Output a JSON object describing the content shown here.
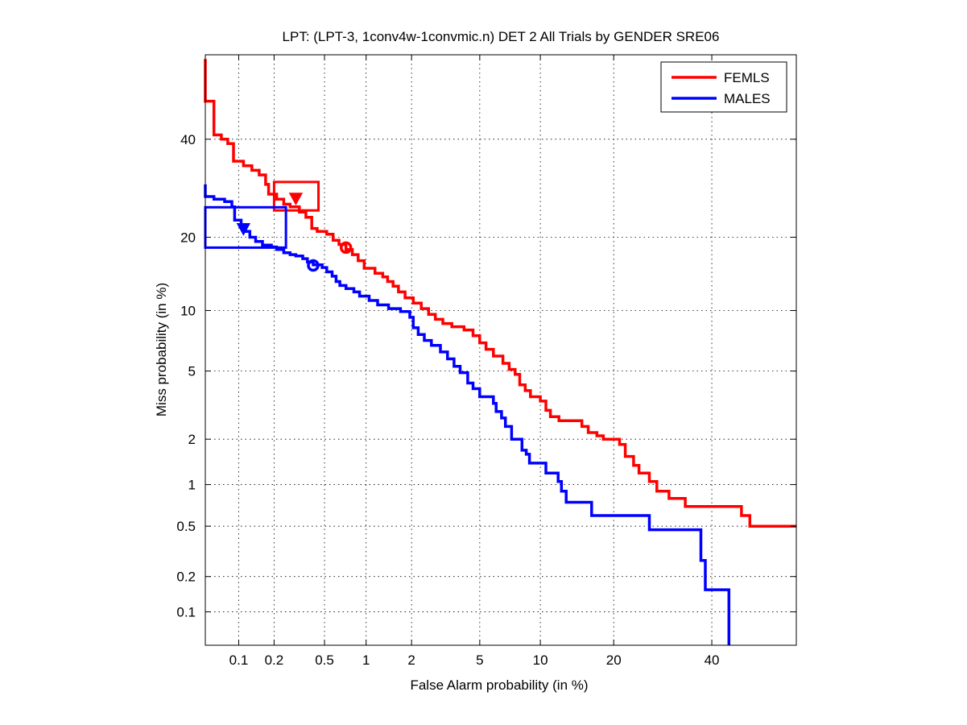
{
  "chart_data": {
    "type": "line",
    "title": "LPT: (LPT-3, 1conv4w-1convmic.n) DET 2 All Trials by GENDER SRE06",
    "xlabel": "False Alarm probability (in %)",
    "ylabel": "Miss probability (in %)",
    "scale": "normal-deviate (probit) axes",
    "xlim": [
      0.05,
      60
    ],
    "ylim": [
      0.05,
      60
    ],
    "x_ticks": [
      0.1,
      0.2,
      0.5,
      1,
      2,
      5,
      10,
      20,
      40
    ],
    "x_tick_labels": [
      "0.1",
      "0.2",
      "0.5",
      "1",
      "2",
      "5",
      "10",
      "20",
      "40"
    ],
    "y_ticks": [
      0.1,
      0.2,
      0.5,
      1,
      2,
      5,
      10,
      20,
      40
    ],
    "y_tick_labels": [
      "0.1",
      "0.2",
      "0.5",
      "1",
      "2",
      "5",
      "10",
      "20",
      "40"
    ],
    "grid": true,
    "legend_position": "top-right",
    "series": [
      {
        "name": "FEMLS",
        "color": "#ff0000",
        "points": [
          [
            0.05,
            59
          ],
          [
            0.05,
            49
          ],
          [
            0.06,
            49
          ],
          [
            0.06,
            41
          ],
          [
            0.07,
            41
          ],
          [
            0.07,
            40
          ],
          [
            0.08,
            40
          ],
          [
            0.08,
            39
          ],
          [
            0.09,
            39
          ],
          [
            0.09,
            35
          ],
          [
            0.11,
            35
          ],
          [
            0.11,
            34
          ],
          [
            0.13,
            34
          ],
          [
            0.13,
            33
          ],
          [
            0.15,
            33
          ],
          [
            0.15,
            32
          ],
          [
            0.17,
            32
          ],
          [
            0.17,
            30
          ],
          [
            0.18,
            30
          ],
          [
            0.18,
            28
          ],
          [
            0.21,
            28
          ],
          [
            0.21,
            27
          ],
          [
            0.24,
            27
          ],
          [
            0.24,
            26
          ],
          [
            0.27,
            26
          ],
          [
            0.27,
            25.5
          ],
          [
            0.32,
            25.5
          ],
          [
            0.32,
            24.5
          ],
          [
            0.36,
            24.5
          ],
          [
            0.36,
            23.5
          ],
          [
            0.4,
            23.5
          ],
          [
            0.4,
            21.5
          ],
          [
            0.44,
            21.5
          ],
          [
            0.44,
            21
          ],
          [
            0.52,
            21
          ],
          [
            0.52,
            20.5
          ],
          [
            0.58,
            20.5
          ],
          [
            0.58,
            19.5
          ],
          [
            0.64,
            19.5
          ],
          [
            0.64,
            18.8
          ],
          [
            0.72,
            18.8
          ],
          [
            0.72,
            18
          ],
          [
            0.8,
            18
          ],
          [
            0.8,
            17.2
          ],
          [
            0.88,
            17.2
          ],
          [
            0.88,
            16.3
          ],
          [
            0.97,
            16.3
          ],
          [
            0.97,
            15.2
          ],
          [
            1.15,
            15.2
          ],
          [
            1.15,
            14.5
          ],
          [
            1.3,
            14.5
          ],
          [
            1.3,
            14
          ],
          [
            1.4,
            14
          ],
          [
            1.4,
            13.4
          ],
          [
            1.52,
            13.4
          ],
          [
            1.52,
            12.8
          ],
          [
            1.65,
            12.8
          ],
          [
            1.65,
            12.1
          ],
          [
            1.82,
            12.1
          ],
          [
            1.82,
            11.4
          ],
          [
            2.05,
            11.4
          ],
          [
            2.05,
            10.8
          ],
          [
            2.3,
            10.8
          ],
          [
            2.3,
            10.2
          ],
          [
            2.55,
            10.2
          ],
          [
            2.55,
            9.6
          ],
          [
            2.8,
            9.6
          ],
          [
            2.8,
            9.1
          ],
          [
            3.1,
            9.1
          ],
          [
            3.1,
            8.7
          ],
          [
            3.5,
            8.7
          ],
          [
            3.5,
            8.4
          ],
          [
            4.1,
            8.4
          ],
          [
            4.1,
            8.1
          ],
          [
            4.6,
            8.1
          ],
          [
            4.6,
            7.6
          ],
          [
            5.0,
            7.6
          ],
          [
            5.0,
            7.0
          ],
          [
            5.4,
            7.0
          ],
          [
            5.4,
            6.5
          ],
          [
            5.9,
            6.5
          ],
          [
            5.9,
            6.0
          ],
          [
            6.6,
            6.0
          ],
          [
            6.6,
            5.5
          ],
          [
            7.1,
            5.5
          ],
          [
            7.1,
            5.1
          ],
          [
            7.6,
            5.1
          ],
          [
            7.6,
            4.8
          ],
          [
            8.0,
            4.8
          ],
          [
            8.0,
            4.2
          ],
          [
            8.5,
            4.2
          ],
          [
            8.5,
            3.9
          ],
          [
            9.0,
            3.9
          ],
          [
            9.0,
            3.6
          ],
          [
            10.0,
            3.6
          ],
          [
            10.0,
            3.4
          ],
          [
            10.6,
            3.4
          ],
          [
            10.6,
            3.0
          ],
          [
            11.1,
            3.0
          ],
          [
            11.1,
            2.75
          ],
          [
            12.1,
            2.75
          ],
          [
            12.1,
            2.6
          ],
          [
            15.1,
            2.6
          ],
          [
            15.1,
            2.4
          ],
          [
            16.0,
            2.4
          ],
          [
            16.0,
            2.2
          ],
          [
            17.3,
            2.2
          ],
          [
            17.3,
            2.1
          ],
          [
            18.3,
            2.1
          ],
          [
            18.3,
            2.0
          ],
          [
            21.0,
            2.0
          ],
          [
            21.0,
            1.85
          ],
          [
            22.0,
            1.85
          ],
          [
            22.0,
            1.55
          ],
          [
            23.5,
            1.55
          ],
          [
            23.5,
            1.35
          ],
          [
            24.5,
            1.35
          ],
          [
            24.5,
            1.2
          ],
          [
            26.5,
            1.2
          ],
          [
            26.5,
            1.05
          ],
          [
            28.0,
            1.05
          ],
          [
            28.0,
            0.9
          ],
          [
            30.5,
            0.9
          ],
          [
            30.5,
            0.8
          ],
          [
            34.0,
            0.8
          ],
          [
            34.0,
            0.7
          ],
          [
            47.0,
            0.7
          ],
          [
            47.0,
            0.6
          ],
          [
            49.0,
            0.6
          ],
          [
            49.0,
            0.5
          ],
          [
            60,
            0.5
          ]
        ]
      },
      {
        "name": "MALES",
        "color": "#0000ff",
        "points": [
          [
            0.05,
            30
          ],
          [
            0.05,
            27.5
          ],
          [
            0.06,
            27.5
          ],
          [
            0.06,
            27
          ],
          [
            0.075,
            27
          ],
          [
            0.075,
            26.5
          ],
          [
            0.087,
            26.5
          ],
          [
            0.087,
            25.5
          ],
          [
            0.092,
            25.5
          ],
          [
            0.092,
            23
          ],
          [
            0.105,
            23
          ],
          [
            0.105,
            22
          ],
          [
            0.115,
            22
          ],
          [
            0.115,
            21
          ],
          [
            0.125,
            21
          ],
          [
            0.125,
            20
          ],
          [
            0.14,
            20
          ],
          [
            0.14,
            19.3
          ],
          [
            0.16,
            19.3
          ],
          [
            0.16,
            18.7
          ],
          [
            0.19,
            18.7
          ],
          [
            0.19,
            18.4
          ],
          [
            0.21,
            18.4
          ],
          [
            0.21,
            18
          ],
          [
            0.24,
            18
          ],
          [
            0.24,
            17.5
          ],
          [
            0.27,
            17.5
          ],
          [
            0.27,
            17.2
          ],
          [
            0.3,
            17.2
          ],
          [
            0.3,
            17.0
          ],
          [
            0.34,
            17.0
          ],
          [
            0.34,
            16.6
          ],
          [
            0.37,
            16.6
          ],
          [
            0.37,
            16.1
          ],
          [
            0.41,
            16.1
          ],
          [
            0.41,
            15.7
          ],
          [
            0.48,
            15.7
          ],
          [
            0.48,
            15.3
          ],
          [
            0.52,
            15.3
          ],
          [
            0.52,
            14.7
          ],
          [
            0.57,
            14.7
          ],
          [
            0.57,
            14.1
          ],
          [
            0.61,
            14.1
          ],
          [
            0.61,
            13.4
          ],
          [
            0.65,
            13.4
          ],
          [
            0.65,
            12.9
          ],
          [
            0.72,
            12.9
          ],
          [
            0.72,
            12.5
          ],
          [
            0.82,
            12.5
          ],
          [
            0.82,
            12.1
          ],
          [
            0.9,
            12.1
          ],
          [
            0.9,
            11.6
          ],
          [
            1.05,
            11.6
          ],
          [
            1.05,
            11.1
          ],
          [
            1.2,
            11.1
          ],
          [
            1.2,
            10.6
          ],
          [
            1.42,
            10.6
          ],
          [
            1.42,
            10.2
          ],
          [
            1.7,
            10.2
          ],
          [
            1.7,
            9.9
          ],
          [
            1.95,
            9.9
          ],
          [
            1.95,
            9.3
          ],
          [
            2.05,
            9.3
          ],
          [
            2.05,
            8.3
          ],
          [
            2.2,
            8.3
          ],
          [
            2.2,
            7.7
          ],
          [
            2.4,
            7.7
          ],
          [
            2.4,
            7.2
          ],
          [
            2.65,
            7.2
          ],
          [
            2.65,
            6.8
          ],
          [
            3.0,
            6.8
          ],
          [
            3.0,
            6.3
          ],
          [
            3.3,
            6.3
          ],
          [
            3.3,
            5.8
          ],
          [
            3.6,
            5.8
          ],
          [
            3.6,
            5.3
          ],
          [
            3.9,
            5.3
          ],
          [
            3.9,
            4.9
          ],
          [
            4.3,
            4.9
          ],
          [
            4.3,
            4.3
          ],
          [
            4.6,
            4.3
          ],
          [
            4.6,
            4.0
          ],
          [
            5.0,
            4.0
          ],
          [
            5.0,
            3.6
          ],
          [
            5.9,
            3.6
          ],
          [
            5.9,
            3.3
          ],
          [
            6.1,
            3.3
          ],
          [
            6.1,
            2.95
          ],
          [
            6.5,
            2.95
          ],
          [
            6.5,
            2.7
          ],
          [
            6.8,
            2.7
          ],
          [
            6.8,
            2.4
          ],
          [
            7.3,
            2.4
          ],
          [
            7.3,
            2.0
          ],
          [
            8.2,
            2.0
          ],
          [
            8.2,
            1.7
          ],
          [
            8.6,
            1.7
          ],
          [
            8.6,
            1.6
          ],
          [
            8.9,
            1.6
          ],
          [
            8.9,
            1.4
          ],
          [
            10.6,
            1.4
          ],
          [
            10.6,
            1.2
          ],
          [
            12.0,
            1.2
          ],
          [
            12.0,
            1.05
          ],
          [
            12.4,
            1.05
          ],
          [
            12.4,
            0.9
          ],
          [
            13.0,
            0.9
          ],
          [
            13.0,
            0.75
          ],
          [
            16.5,
            0.75
          ],
          [
            16.5,
            0.6
          ],
          [
            26.5,
            0.6
          ],
          [
            26.5,
            0.47
          ],
          [
            37.5,
            0.47
          ],
          [
            37.5,
            0.27
          ],
          [
            38.5,
            0.27
          ],
          [
            38.5,
            0.155
          ],
          [
            44.0,
            0.155
          ],
          [
            44.0,
            0.05
          ]
        ]
      }
    ],
    "markers": [
      {
        "series": "FEMLS",
        "shape": "triangle-down",
        "x": 0.3,
        "y": 27.2,
        "color": "#ff0000"
      },
      {
        "series": "FEMLS",
        "shape": "circle",
        "x": 0.72,
        "y": 18.3,
        "color": "#ff0000"
      },
      {
        "series": "MALES",
        "shape": "triangle-down",
        "x": 0.11,
        "y": 21.5,
        "color": "#0000ff"
      },
      {
        "series": "MALES",
        "shape": "circle",
        "x": 0.41,
        "y": 15.6,
        "color": "#0000ff"
      }
    ],
    "boxes": [
      {
        "series": "FEMLS",
        "color": "#ff0000",
        "x": [
          0.2,
          0.45
        ],
        "y": [
          24.8,
          30.5
        ]
      },
      {
        "series": "MALES",
        "color": "#0000ff",
        "x": [
          0.05,
          0.25
        ],
        "y": [
          18.3,
          25.4
        ]
      }
    ]
  }
}
